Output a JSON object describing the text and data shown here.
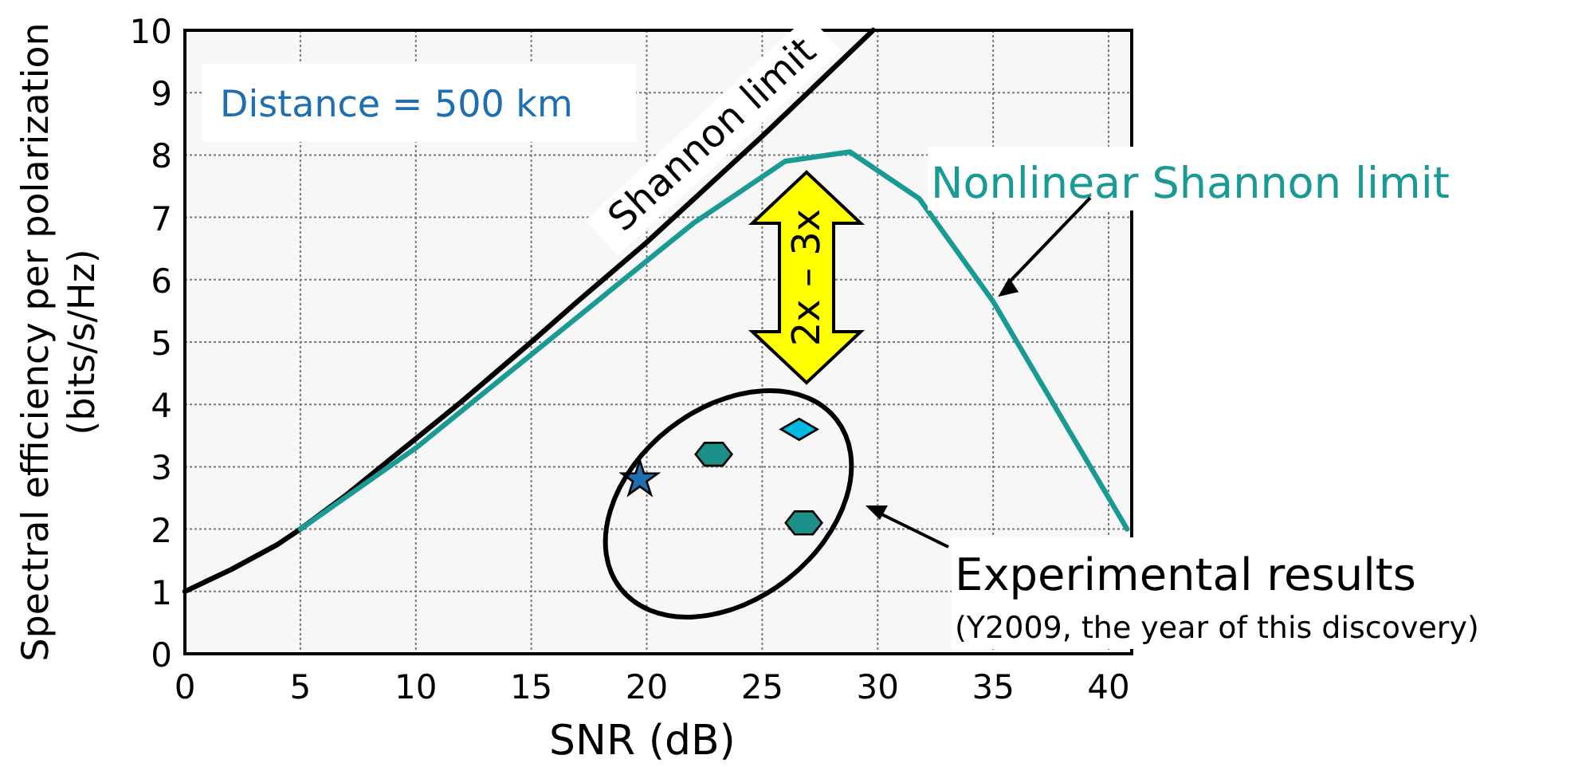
{
  "chart_data": {
    "type": "line",
    "xlabel": "SNR (dB)",
    "ylabel": "Spectral efficiency per polarization\n(bits/s/Hz)",
    "xlim": [
      0,
      41
    ],
    "ylim": [
      0,
      10
    ],
    "xticks": [
      0,
      5,
      10,
      15,
      20,
      25,
      30,
      35,
      40
    ],
    "yticks": [
      0,
      1,
      2,
      3,
      4,
      5,
      6,
      7,
      8,
      9,
      10
    ],
    "grid": true,
    "series": [
      {
        "name": "Shannon limit",
        "color": "#000000",
        "x": [
          0,
          2,
          4,
          5,
          7,
          10,
          12,
          15,
          17,
          20,
          25,
          29.8
        ],
        "values": [
          1,
          1.35,
          1.75,
          2,
          2.55,
          3.45,
          4.05,
          5,
          5.65,
          6.6,
          8.3,
          10
        ]
      },
      {
        "name": "Nonlinear Shannon limit",
        "color": "#1a9a94",
        "x": [
          5,
          10,
          15,
          20,
          22,
          24,
          26,
          28.8,
          31.8,
          35,
          40.8
        ],
        "values": [
          2,
          3.3,
          4.8,
          6.3,
          6.9,
          7.4,
          7.9,
          8.05,
          7.3,
          5.65,
          2
        ]
      },
      {
        "type": "scatter",
        "marker": "star",
        "color": "#1f6fb0",
        "x": [
          19.7
        ],
        "values": [
          2.8
        ]
      },
      {
        "type": "scatter",
        "color": "#1a9088",
        "x": [
          22.9
        ],
        "values": [
          3.2
        ]
      },
      {
        "type": "scatter",
        "marker": "diamond",
        "color": "#00b8e0",
        "x": [
          26.6
        ],
        "values": [
          3.6
        ]
      },
      {
        "type": "scatter",
        "color": "#1a9088",
        "x": [
          26.8
        ],
        "values": [
          2.1
        ]
      }
    ],
    "annotations": [
      "Distance = 500 km",
      "2x – 3x",
      "Experimental results",
      "(Y2009, the year of this discovery)"
    ]
  }
}
